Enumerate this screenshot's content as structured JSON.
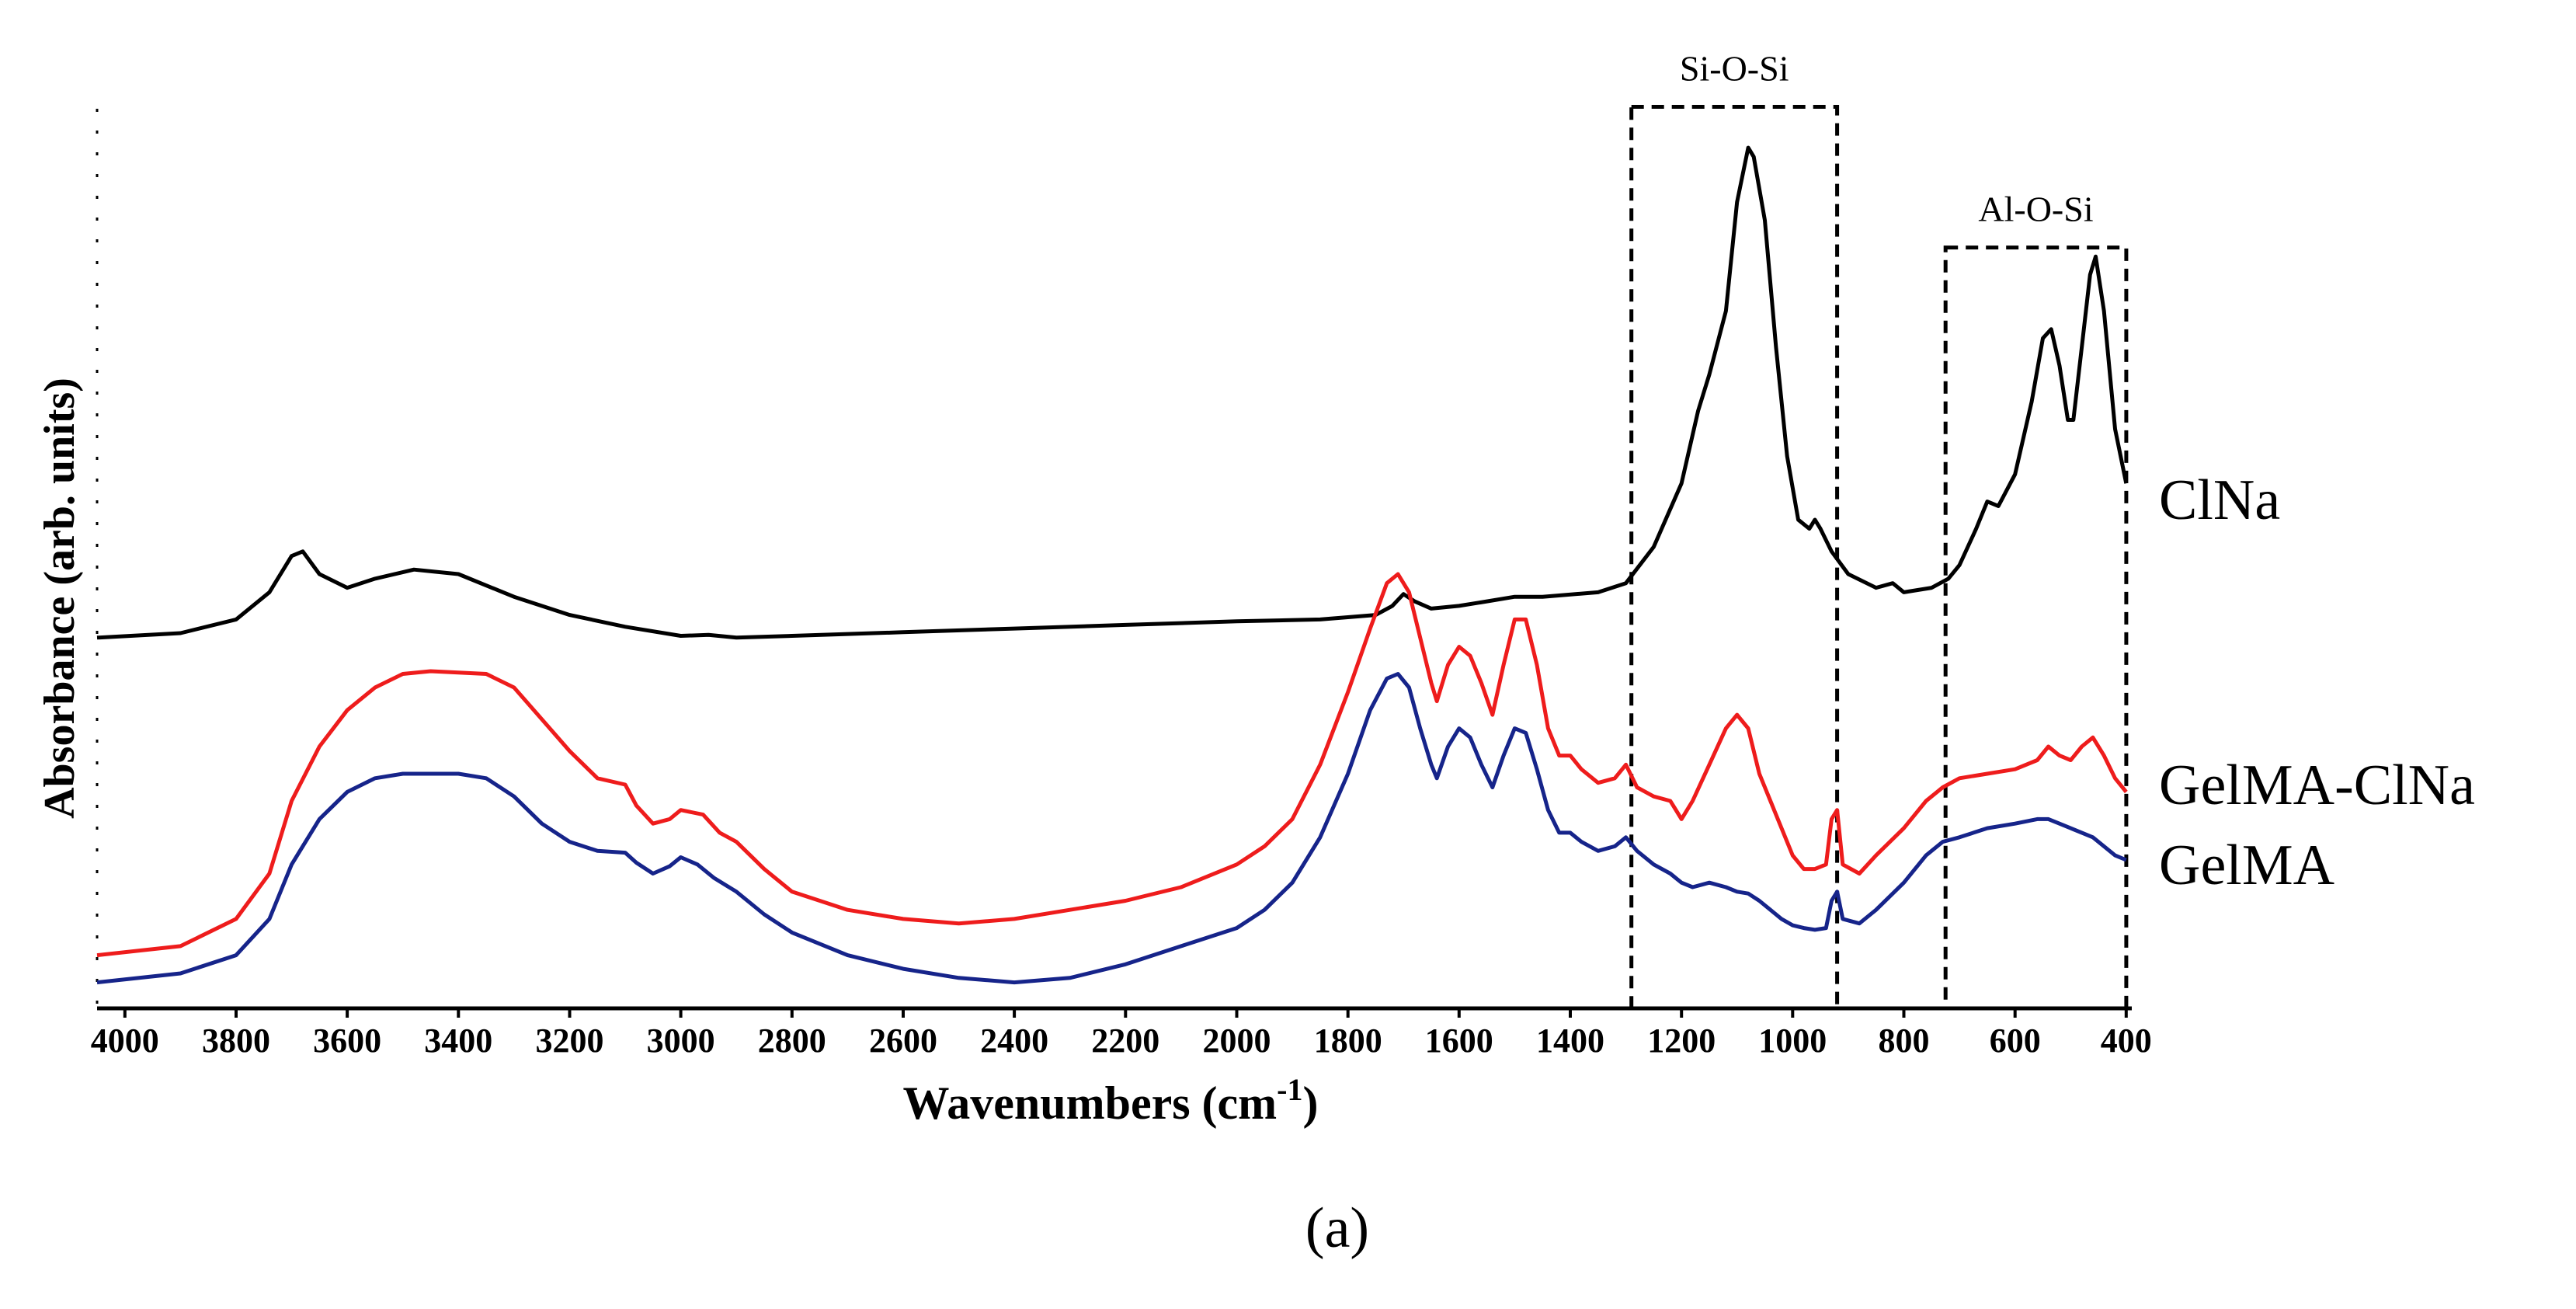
{
  "chart_data": {
    "type": "line",
    "xlabel_prefix": "Wavenumbers (cm",
    "xlabel_sup": "-1",
    "xlabel_suffix": ")",
    "ylabel": "Absorbance (arb. units)",
    "xlim": [
      4050,
      390
    ],
    "ylim": [
      0,
      1
    ],
    "x_ticks": [
      "4000",
      "3800",
      "3600",
      "3400",
      "3200",
      "3000",
      "2800",
      "2600",
      "2400",
      "2200",
      "2000",
      "1800",
      "1600",
      "1400",
      "1200",
      "1000",
      "800",
      "600",
      "400"
    ],
    "regions": [
      {
        "name": "Si-O-Si",
        "x_range": [
          1290,
          920
        ],
        "y_range": [
          0.0,
          0.985
        ]
      },
      {
        "name": "Al-O-Si",
        "x_range": [
          725,
          400
        ],
        "y_range": [
          0.0,
          0.83
        ]
      }
    ],
    "series": [
      {
        "name": "ClNa",
        "color": "#000000",
        "points": [
          [
            4050,
            0.4
          ],
          [
            3900,
            0.405
          ],
          [
            3800,
            0.42
          ],
          [
            3740,
            0.45
          ],
          [
            3700,
            0.49
          ],
          [
            3680,
            0.495
          ],
          [
            3650,
            0.47
          ],
          [
            3600,
            0.455
          ],
          [
            3550,
            0.465
          ],
          [
            3480,
            0.475
          ],
          [
            3400,
            0.47
          ],
          [
            3300,
            0.445
          ],
          [
            3200,
            0.425
          ],
          [
            3100,
            0.412
          ],
          [
            3000,
            0.402
          ],
          [
            2950,
            0.403
          ],
          [
            2900,
            0.4
          ],
          [
            2800,
            0.402
          ],
          [
            2600,
            0.406
          ],
          [
            2400,
            0.41
          ],
          [
            2200,
            0.414
          ],
          [
            2000,
            0.418
          ],
          [
            1850,
            0.42
          ],
          [
            1750,
            0.425
          ],
          [
            1720,
            0.435
          ],
          [
            1700,
            0.448
          ],
          [
            1680,
            0.44
          ],
          [
            1650,
            0.432
          ],
          [
            1600,
            0.435
          ],
          [
            1550,
            0.44
          ],
          [
            1500,
            0.445
          ],
          [
            1450,
            0.445
          ],
          [
            1350,
            0.45
          ],
          [
            1300,
            0.46
          ],
          [
            1250,
            0.5
          ],
          [
            1200,
            0.57
          ],
          [
            1170,
            0.65
          ],
          [
            1150,
            0.69
          ],
          [
            1120,
            0.76
          ],
          [
            1100,
            0.88
          ],
          [
            1080,
            0.94
          ],
          [
            1070,
            0.93
          ],
          [
            1050,
            0.86
          ],
          [
            1030,
            0.72
          ],
          [
            1010,
            0.6
          ],
          [
            990,
            0.53
          ],
          [
            970,
            0.52
          ],
          [
            960,
            0.53
          ],
          [
            950,
            0.52
          ],
          [
            930,
            0.495
          ],
          [
            900,
            0.47
          ],
          [
            850,
            0.455
          ],
          [
            820,
            0.46
          ],
          [
            800,
            0.45
          ],
          [
            750,
            0.455
          ],
          [
            720,
            0.465
          ],
          [
            700,
            0.48
          ],
          [
            670,
            0.52
          ],
          [
            650,
            0.55
          ],
          [
            630,
            0.545
          ],
          [
            600,
            0.58
          ],
          [
            570,
            0.66
          ],
          [
            550,
            0.73
          ],
          [
            535,
            0.74
          ],
          [
            520,
            0.7
          ],
          [
            505,
            0.64
          ],
          [
            495,
            0.64
          ],
          [
            480,
            0.72
          ],
          [
            465,
            0.8
          ],
          [
            455,
            0.82
          ],
          [
            440,
            0.76
          ],
          [
            420,
            0.63
          ],
          [
            400,
            0.57
          ]
        ]
      },
      {
        "name": "GelMA-ClNa",
        "color": "#ee1c1c",
        "points": [
          [
            4050,
            0.05
          ],
          [
            3900,
            0.06
          ],
          [
            3800,
            0.09
          ],
          [
            3740,
            0.14
          ],
          [
            3700,
            0.22
          ],
          [
            3650,
            0.28
          ],
          [
            3600,
            0.32
          ],
          [
            3550,
            0.345
          ],
          [
            3500,
            0.36
          ],
          [
            3450,
            0.363
          ],
          [
            3350,
            0.36
          ],
          [
            3300,
            0.345
          ],
          [
            3250,
            0.31
          ],
          [
            3200,
            0.275
          ],
          [
            3150,
            0.245
          ],
          [
            3100,
            0.238
          ],
          [
            3080,
            0.215
          ],
          [
            3050,
            0.195
          ],
          [
            3020,
            0.2
          ],
          [
            3000,
            0.21
          ],
          [
            2960,
            0.205
          ],
          [
            2930,
            0.185
          ],
          [
            2900,
            0.175
          ],
          [
            2850,
            0.145
          ],
          [
            2800,
            0.12
          ],
          [
            2700,
            0.1
          ],
          [
            2600,
            0.09
          ],
          [
            2500,
            0.085
          ],
          [
            2400,
            0.09
          ],
          [
            2300,
            0.1
          ],
          [
            2200,
            0.11
          ],
          [
            2100,
            0.125
          ],
          [
            2000,
            0.15
          ],
          [
            1950,
            0.17
          ],
          [
            1900,
            0.2
          ],
          [
            1850,
            0.26
          ],
          [
            1800,
            0.34
          ],
          [
            1760,
            0.41
          ],
          [
            1730,
            0.46
          ],
          [
            1710,
            0.47
          ],
          [
            1690,
            0.45
          ],
          [
            1670,
            0.4
          ],
          [
            1650,
            0.35
          ],
          [
            1640,
            0.33
          ],
          [
            1620,
            0.37
          ],
          [
            1600,
            0.39
          ],
          [
            1580,
            0.38
          ],
          [
            1560,
            0.35
          ],
          [
            1540,
            0.315
          ],
          [
            1520,
            0.37
          ],
          [
            1500,
            0.42
          ],
          [
            1480,
            0.42
          ],
          [
            1460,
            0.37
          ],
          [
            1440,
            0.3
          ],
          [
            1420,
            0.27
          ],
          [
            1400,
            0.27
          ],
          [
            1380,
            0.255
          ],
          [
            1350,
            0.24
          ],
          [
            1320,
            0.245
          ],
          [
            1300,
            0.26
          ],
          [
            1280,
            0.235
          ],
          [
            1250,
            0.225
          ],
          [
            1220,
            0.22
          ],
          [
            1200,
            0.2
          ],
          [
            1180,
            0.22
          ],
          [
            1150,
            0.26
          ],
          [
            1120,
            0.3
          ],
          [
            1100,
            0.315
          ],
          [
            1080,
            0.3
          ],
          [
            1060,
            0.25
          ],
          [
            1040,
            0.22
          ],
          [
            1020,
            0.19
          ],
          [
            1000,
            0.16
          ],
          [
            980,
            0.145
          ],
          [
            960,
            0.145
          ],
          [
            940,
            0.15
          ],
          [
            930,
            0.2
          ],
          [
            920,
            0.21
          ],
          [
            910,
            0.15
          ],
          [
            880,
            0.14
          ],
          [
            850,
            0.16
          ],
          [
            800,
            0.19
          ],
          [
            760,
            0.22
          ],
          [
            730,
            0.235
          ],
          [
            700,
            0.245
          ],
          [
            650,
            0.25
          ],
          [
            600,
            0.255
          ],
          [
            560,
            0.265
          ],
          [
            540,
            0.28
          ],
          [
            520,
            0.27
          ],
          [
            500,
            0.265
          ],
          [
            480,
            0.28
          ],
          [
            460,
            0.29
          ],
          [
            440,
            0.27
          ],
          [
            420,
            0.245
          ],
          [
            400,
            0.23
          ]
        ]
      },
      {
        "name": "GelMA",
        "color": "#16248a",
        "points": [
          [
            4050,
            0.02
          ],
          [
            3900,
            0.03
          ],
          [
            3800,
            0.05
          ],
          [
            3740,
            0.09
          ],
          [
            3700,
            0.15
          ],
          [
            3650,
            0.2
          ],
          [
            3600,
            0.23
          ],
          [
            3550,
            0.245
          ],
          [
            3500,
            0.25
          ],
          [
            3400,
            0.25
          ],
          [
            3350,
            0.245
          ],
          [
            3300,
            0.225
          ],
          [
            3250,
            0.195
          ],
          [
            3200,
            0.175
          ],
          [
            3150,
            0.165
          ],
          [
            3100,
            0.163
          ],
          [
            3080,
            0.152
          ],
          [
            3050,
            0.14
          ],
          [
            3020,
            0.148
          ],
          [
            3000,
            0.158
          ],
          [
            2970,
            0.15
          ],
          [
            2940,
            0.135
          ],
          [
            2900,
            0.12
          ],
          [
            2850,
            0.095
          ],
          [
            2800,
            0.075
          ],
          [
            2700,
            0.05
          ],
          [
            2600,
            0.035
          ],
          [
            2500,
            0.025
          ],
          [
            2400,
            0.02
          ],
          [
            2300,
            0.025
          ],
          [
            2200,
            0.04
          ],
          [
            2100,
            0.06
          ],
          [
            2000,
            0.08
          ],
          [
            1950,
            0.1
          ],
          [
            1900,
            0.13
          ],
          [
            1850,
            0.18
          ],
          [
            1800,
            0.25
          ],
          [
            1760,
            0.32
          ],
          [
            1730,
            0.355
          ],
          [
            1710,
            0.36
          ],
          [
            1690,
            0.345
          ],
          [
            1670,
            0.3
          ],
          [
            1650,
            0.26
          ],
          [
            1640,
            0.245
          ],
          [
            1620,
            0.28
          ],
          [
            1600,
            0.3
          ],
          [
            1580,
            0.29
          ],
          [
            1560,
            0.26
          ],
          [
            1540,
            0.235
          ],
          [
            1520,
            0.27
          ],
          [
            1500,
            0.3
          ],
          [
            1480,
            0.295
          ],
          [
            1460,
            0.255
          ],
          [
            1440,
            0.21
          ],
          [
            1420,
            0.185
          ],
          [
            1400,
            0.185
          ],
          [
            1380,
            0.175
          ],
          [
            1350,
            0.165
          ],
          [
            1320,
            0.17
          ],
          [
            1300,
            0.18
          ],
          [
            1280,
            0.165
          ],
          [
            1250,
            0.15
          ],
          [
            1220,
            0.14
          ],
          [
            1200,
            0.13
          ],
          [
            1180,
            0.125
          ],
          [
            1150,
            0.13
          ],
          [
            1120,
            0.125
          ],
          [
            1100,
            0.12
          ],
          [
            1080,
            0.118
          ],
          [
            1060,
            0.11
          ],
          [
            1040,
            0.1
          ],
          [
            1020,
            0.09
          ],
          [
            1000,
            0.083
          ],
          [
            980,
            0.08
          ],
          [
            960,
            0.078
          ],
          [
            940,
            0.08
          ],
          [
            930,
            0.11
          ],
          [
            920,
            0.12
          ],
          [
            910,
            0.09
          ],
          [
            880,
            0.085
          ],
          [
            850,
            0.1
          ],
          [
            800,
            0.13
          ],
          [
            760,
            0.16
          ],
          [
            730,
            0.175
          ],
          [
            700,
            0.18
          ],
          [
            650,
            0.19
          ],
          [
            600,
            0.195
          ],
          [
            560,
            0.2
          ],
          [
            540,
            0.2
          ],
          [
            520,
            0.195
          ],
          [
            500,
            0.19
          ],
          [
            480,
            0.185
          ],
          [
            460,
            0.18
          ],
          [
            440,
            0.17
          ],
          [
            420,
            0.16
          ],
          [
            400,
            0.155
          ]
        ]
      }
    ]
  },
  "caption": "(a)"
}
